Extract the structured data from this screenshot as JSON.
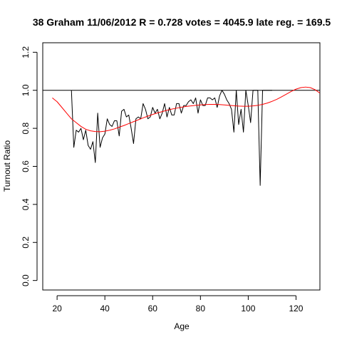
{
  "chart_data": {
    "type": "line",
    "title": "38 Graham 11/06/2012 R = 0.728 votes = 4045.9 late reg. = 169.5",
    "xlabel": "Age",
    "ylabel": "Turnout Ratio",
    "xlim": [
      14,
      130
    ],
    "ylim": [
      -0.05,
      1.25
    ],
    "xticks": [
      20,
      40,
      60,
      80,
      100,
      120
    ],
    "yticks": [
      0.0,
      0.2,
      0.4,
      0.6,
      0.8,
      1.0,
      1.2
    ],
    "xtick_labels": [
      "20",
      "40",
      "60",
      "80",
      "100",
      "120"
    ],
    "ytick_labels": [
      "0.0",
      "0.2",
      "0.4",
      "0.6",
      "0.8",
      "1.0",
      "1.2"
    ],
    "reference_line": {
      "y": 1.0,
      "color": "#000000"
    },
    "series": [
      {
        "color": "#000000",
        "x": [
          26,
          27,
          28,
          29,
          30,
          31,
          32,
          33,
          34,
          35,
          36,
          37,
          38,
          39,
          40,
          41,
          42,
          43,
          44,
          45,
          46,
          47,
          48,
          49,
          50,
          51,
          52,
          53,
          54,
          55,
          56,
          57,
          58,
          59,
          60,
          61,
          62,
          63,
          64,
          65,
          66,
          67,
          68,
          69,
          70,
          71,
          72,
          73,
          74,
          75,
          76,
          77,
          78,
          79,
          80,
          81,
          82,
          83,
          84,
          85,
          86,
          87,
          88,
          89,
          90,
          91,
          92,
          93,
          94,
          95,
          96,
          97,
          98,
          99,
          100,
          101,
          102,
          103,
          104,
          105,
          106,
          107,
          108,
          109,
          110
        ],
        "y": [
          1.0,
          0.7,
          0.79,
          0.78,
          0.8,
          0.74,
          0.79,
          0.71,
          0.69,
          0.73,
          0.62,
          0.88,
          0.7,
          0.75,
          0.77,
          0.85,
          0.82,
          0.81,
          0.84,
          0.84,
          0.76,
          0.89,
          0.9,
          0.86,
          0.87,
          0.8,
          0.72,
          0.85,
          0.86,
          0.85,
          0.93,
          0.9,
          0.85,
          0.86,
          0.91,
          0.88,
          0.9,
          0.85,
          0.88,
          0.93,
          0.86,
          0.91,
          0.87,
          0.87,
          0.93,
          0.93,
          0.88,
          0.92,
          0.92,
          0.94,
          0.95,
          0.93,
          0.96,
          0.88,
          0.95,
          0.92,
          0.92,
          0.96,
          0.96,
          0.95,
          0.96,
          0.91,
          0.97,
          1.0,
          0.98,
          0.95,
          0.93,
          0.9,
          0.78,
          1.0,
          0.82,
          0.9,
          0.78,
          1.0,
          0.92,
          0.83,
          1.0,
          1.0,
          1.0,
          0.5,
          1.0,
          1.0,
          1.0,
          1.0,
          1.0
        ]
      },
      {
        "color": "#ff0000",
        "x": [
          18,
          20,
          22,
          24,
          26,
          28,
          30,
          32,
          34,
          36,
          38,
          40,
          42,
          44,
          46,
          48,
          50,
          52,
          54,
          56,
          58,
          60,
          62,
          64,
          66,
          68,
          70,
          72,
          74,
          76,
          78,
          80,
          82,
          84,
          86,
          88,
          90,
          92,
          94,
          96,
          98,
          100,
          102,
          104,
          106,
          108,
          110,
          112,
          114,
          116,
          118,
          120,
          122,
          124,
          126,
          128,
          130
        ],
        "y": [
          0.96,
          0.94,
          0.91,
          0.88,
          0.85,
          0.83,
          0.81,
          0.795,
          0.787,
          0.783,
          0.782,
          0.785,
          0.79,
          0.797,
          0.806,
          0.815,
          0.825,
          0.835,
          0.845,
          0.855,
          0.864,
          0.873,
          0.881,
          0.888,
          0.895,
          0.901,
          0.906,
          0.911,
          0.915,
          0.918,
          0.921,
          0.923,
          0.925,
          0.926,
          0.926,
          0.925,
          0.923,
          0.921,
          0.919,
          0.917,
          0.916,
          0.916,
          0.918,
          0.921,
          0.926,
          0.933,
          0.942,
          0.953,
          0.966,
          0.98,
          0.994,
          1.006,
          1.014,
          1.017,
          1.014,
          1.003,
          0.985
        ]
      }
    ]
  }
}
